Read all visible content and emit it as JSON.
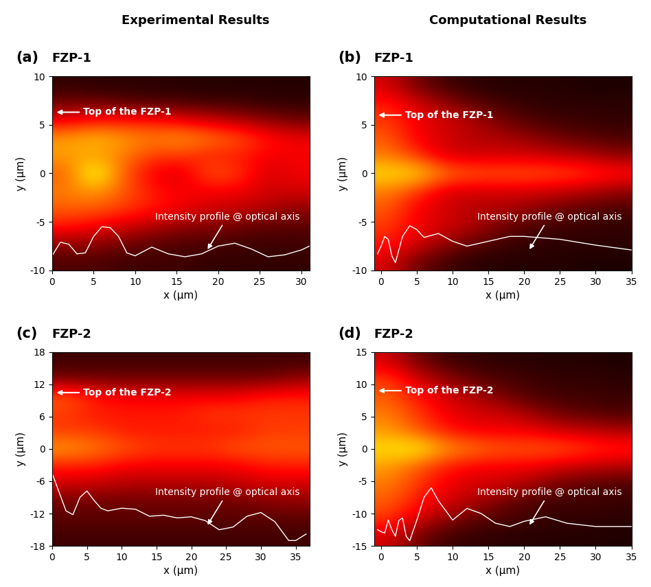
{
  "column_titles": [
    "Experimental Results",
    "Computational Results"
  ],
  "chart_data": [
    {
      "type": "heatmap",
      "panel": "(a)",
      "title": "FZP-1",
      "xlabel": "x (μm)",
      "ylabel": "y (μm)",
      "xlim": [
        0,
        31
      ],
      "ylim": [
        -10,
        10
      ],
      "xticks": [
        0,
        5,
        10,
        15,
        20,
        25,
        30
      ],
      "yticks": [
        -10,
        -5,
        0,
        5,
        10
      ],
      "zlim": [
        0,
        1
      ],
      "cells": [
        [
          0.1,
          0.1,
          0.08,
          0.08,
          0.08,
          0.06,
          0.06,
          0.06,
          0.06
        ],
        [
          0.2,
          0.2,
          0.15,
          0.12,
          0.1,
          0.1,
          0.08,
          0.08,
          0.08
        ],
        [
          0.4,
          0.35,
          0.3,
          0.25,
          0.2,
          0.18,
          0.15,
          0.12,
          0.12
        ],
        [
          0.5,
          0.5,
          0.45,
          0.4,
          0.35,
          0.3,
          0.28,
          0.25,
          0.2
        ],
        [
          0.55,
          0.6,
          0.5,
          0.4,
          0.35,
          0.35,
          0.35,
          0.3,
          0.3
        ],
        [
          0.5,
          0.8,
          0.5,
          0.35,
          0.3,
          0.5,
          0.45,
          0.3,
          0.35
        ],
        [
          0.6,
          0.6,
          0.55,
          0.45,
          0.45,
          0.4,
          0.4,
          0.35,
          0.35
        ],
        [
          0.6,
          0.65,
          0.6,
          0.55,
          0.6,
          0.55,
          0.5,
          0.4,
          0.35
        ],
        [
          0.35,
          0.4,
          0.4,
          0.4,
          0.35,
          0.3,
          0.25,
          0.2,
          0.15
        ],
        [
          0.15,
          0.15,
          0.12,
          0.1,
          0.1,
          0.08,
          0.08,
          0.06,
          0.06
        ],
        [
          0.06,
          0.05,
          0.05,
          0.05,
          0.04,
          0.04,
          0.04,
          0.04,
          0.04
        ]
      ],
      "profile": {
        "x": [
          0,
          1,
          2,
          3,
          4,
          5,
          6,
          7,
          8,
          9,
          10,
          12,
          14,
          16,
          18,
          20,
          22,
          24,
          26,
          28,
          30,
          31
        ],
        "values": [
          -8.5,
          -7.1,
          -7.3,
          -8.3,
          -8.2,
          -6.5,
          -5.5,
          -5.6,
          -6.5,
          -8.2,
          -8.5,
          -7.6,
          -8.3,
          -8.6,
          -8.3,
          -7.5,
          -7.2,
          -7.8,
          -8.6,
          -8.4,
          -7.9,
          -7.5
        ]
      },
      "annotations": [
        "Top of the FZP-1",
        "Intensity profile @ optical axis"
      ]
    },
    {
      "type": "heatmap",
      "panel": "(b)",
      "title": "FZP-1",
      "xlabel": "x (μm)",
      "ylabel": "y (μm)",
      "xlim": [
        -1,
        35
      ],
      "ylim": [
        -10,
        10
      ],
      "xticks": [
        0,
        5,
        10,
        15,
        20,
        25,
        30,
        35
      ],
      "yticks": [
        -10,
        -5,
        0,
        5,
        10
      ],
      "zlim": [
        0,
        1
      ],
      "cells": [
        [
          0.3,
          0.15,
          0.08,
          0.05,
          0.04,
          0.04,
          0.04,
          0.03,
          0.03
        ],
        [
          0.4,
          0.3,
          0.2,
          0.12,
          0.08,
          0.06,
          0.05,
          0.05,
          0.05
        ],
        [
          0.45,
          0.35,
          0.3,
          0.25,
          0.15,
          0.1,
          0.08,
          0.07,
          0.06
        ],
        [
          0.5,
          0.35,
          0.3,
          0.25,
          0.25,
          0.2,
          0.15,
          0.12,
          0.1
        ],
        [
          0.55,
          0.45,
          0.3,
          0.3,
          0.3,
          0.3,
          0.28,
          0.25,
          0.2
        ],
        [
          0.7,
          0.7,
          0.55,
          0.5,
          0.5,
          0.5,
          0.48,
          0.45,
          0.4
        ],
        [
          0.55,
          0.45,
          0.3,
          0.3,
          0.3,
          0.3,
          0.28,
          0.25,
          0.2
        ],
        [
          0.5,
          0.35,
          0.3,
          0.25,
          0.25,
          0.2,
          0.15,
          0.12,
          0.1
        ],
        [
          0.45,
          0.35,
          0.3,
          0.25,
          0.15,
          0.1,
          0.08,
          0.07,
          0.06
        ],
        [
          0.4,
          0.3,
          0.2,
          0.12,
          0.08,
          0.06,
          0.05,
          0.05,
          0.05
        ],
        [
          0.3,
          0.15,
          0.08,
          0.05,
          0.04,
          0.04,
          0.04,
          0.03,
          0.03
        ]
      ],
      "profile": {
        "x": [
          -0.5,
          0,
          0.5,
          1,
          1.5,
          2,
          3,
          4,
          5,
          6,
          7,
          8,
          10,
          12,
          15,
          18,
          20,
          25,
          30,
          35
        ],
        "values": [
          -8.3,
          -7.5,
          -6.5,
          -6.8,
          -8.5,
          -9.2,
          -6.5,
          -5.4,
          -5.8,
          -6.6,
          -6.4,
          -6.2,
          -7.0,
          -7.5,
          -7.0,
          -6.5,
          -6.5,
          -6.8,
          -7.4,
          -7.9
        ]
      },
      "annotations": [
        "Top of the FZP-1",
        "Intensity profile @ optical axis"
      ]
    },
    {
      "type": "heatmap",
      "panel": "(c)",
      "title": "FZP-2",
      "xlabel": "x (μm)",
      "ylabel": "y (μm)",
      "xlim": [
        0,
        37
      ],
      "ylim": [
        -18,
        18
      ],
      "xticks": [
        0,
        5,
        10,
        15,
        20,
        25,
        30,
        35
      ],
      "yticks": [
        -18,
        -12,
        -6,
        0,
        6,
        12,
        18
      ],
      "zlim": [
        0,
        1
      ],
      "cells": [
        [
          0.08,
          0.08,
          0.08,
          0.08,
          0.08,
          0.08,
          0.08,
          0.08,
          0.08
        ],
        [
          0.12,
          0.12,
          0.12,
          0.12,
          0.12,
          0.12,
          0.12,
          0.12,
          0.12
        ],
        [
          0.15,
          0.15,
          0.15,
          0.15,
          0.15,
          0.15,
          0.15,
          0.18,
          0.2
        ],
        [
          0.3,
          0.28,
          0.25,
          0.25,
          0.25,
          0.25,
          0.28,
          0.3,
          0.3
        ],
        [
          0.4,
          0.4,
          0.35,
          0.35,
          0.35,
          0.35,
          0.35,
          0.4,
          0.4
        ],
        [
          0.6,
          0.55,
          0.5,
          0.45,
          0.45,
          0.45,
          0.5,
          0.5,
          0.5
        ],
        [
          0.45,
          0.45,
          0.4,
          0.4,
          0.4,
          0.4,
          0.4,
          0.45,
          0.45
        ],
        [
          0.45,
          0.4,
          0.4,
          0.4,
          0.4,
          0.45,
          0.45,
          0.45,
          0.45
        ],
        [
          0.5,
          0.4,
          0.35,
          0.35,
          0.35,
          0.35,
          0.35,
          0.4,
          0.4
        ],
        [
          0.15,
          0.15,
          0.15,
          0.15,
          0.15,
          0.15,
          0.15,
          0.15,
          0.2
        ],
        [
          0.08,
          0.08,
          0.08,
          0.08,
          0.08,
          0.08,
          0.08,
          0.08,
          0.08
        ]
      ],
      "profile": {
        "x": [
          0,
          1,
          2,
          3,
          4,
          5,
          6,
          7,
          8,
          10,
          12,
          14,
          16,
          18,
          20,
          22,
          24,
          26,
          28,
          30,
          32,
          34,
          35,
          36.5
        ],
        "values": [
          -4.5,
          -8,
          -11.5,
          -12.2,
          -9,
          -7.8,
          -9.5,
          -11,
          -11.5,
          -11,
          -11.2,
          -12.5,
          -12.3,
          -12.8,
          -12.6,
          -13.3,
          -15,
          -14.5,
          -12.5,
          -11.8,
          -13.5,
          -17,
          -17,
          -15.8
        ]
      },
      "annotations": [
        "Top of the FZP-2",
        "Intensity profile @ optical axis"
      ]
    },
    {
      "type": "heatmap",
      "panel": "(d)",
      "title": "FZP-2",
      "xlabel": "x (μm)",
      "ylabel": "y (μm)",
      "xlim": [
        -1,
        35
      ],
      "ylim": [
        -15,
        15
      ],
      "xticks": [
        0,
        5,
        10,
        15,
        20,
        25,
        30,
        35
      ],
      "yticks": [
        -15,
        -10,
        -5,
        0,
        5,
        10,
        15
      ],
      "zlim": [
        0,
        1
      ],
      "cells": [
        [
          0.3,
          0.15,
          0.08,
          0.06,
          0.05,
          0.04,
          0.04,
          0.04,
          0.03
        ],
        [
          0.45,
          0.3,
          0.2,
          0.12,
          0.1,
          0.08,
          0.06,
          0.06,
          0.05
        ],
        [
          0.5,
          0.4,
          0.3,
          0.25,
          0.15,
          0.1,
          0.08,
          0.08,
          0.07
        ],
        [
          0.55,
          0.45,
          0.35,
          0.3,
          0.3,
          0.22,
          0.15,
          0.12,
          0.1
        ],
        [
          0.6,
          0.5,
          0.4,
          0.35,
          0.35,
          0.35,
          0.3,
          0.28,
          0.25
        ],
        [
          0.7,
          0.75,
          0.6,
          0.55,
          0.5,
          0.5,
          0.5,
          0.45,
          0.42
        ],
        [
          0.6,
          0.5,
          0.4,
          0.35,
          0.35,
          0.35,
          0.3,
          0.28,
          0.25
        ],
        [
          0.55,
          0.45,
          0.35,
          0.3,
          0.3,
          0.22,
          0.15,
          0.12,
          0.1
        ],
        [
          0.5,
          0.4,
          0.3,
          0.25,
          0.15,
          0.1,
          0.08,
          0.08,
          0.07
        ],
        [
          0.45,
          0.3,
          0.2,
          0.12,
          0.1,
          0.08,
          0.06,
          0.06,
          0.05
        ],
        [
          0.3,
          0.15,
          0.08,
          0.06,
          0.05,
          0.04,
          0.04,
          0.04,
          0.03
        ]
      ],
      "profile": {
        "x": [
          -0.5,
          0,
          0.5,
          1,
          1.5,
          2,
          2.5,
          3,
          3.5,
          4,
          5,
          6,
          7,
          8,
          10,
          12,
          14,
          16,
          18,
          20,
          23,
          26,
          30,
          35
        ],
        "values": [
          -12.5,
          -12.8,
          -13,
          -11,
          -12.5,
          -13.5,
          -11,
          -10.7,
          -13.5,
          -14.2,
          -11,
          -7.5,
          -6,
          -8,
          -11,
          -9.2,
          -10,
          -11.5,
          -12,
          -11.2,
          -10.5,
          -11.5,
          -12,
          -12
        ]
      },
      "annotations": [
        "Top of the FZP-2",
        "Intensity profile @ optical axis"
      ]
    }
  ]
}
